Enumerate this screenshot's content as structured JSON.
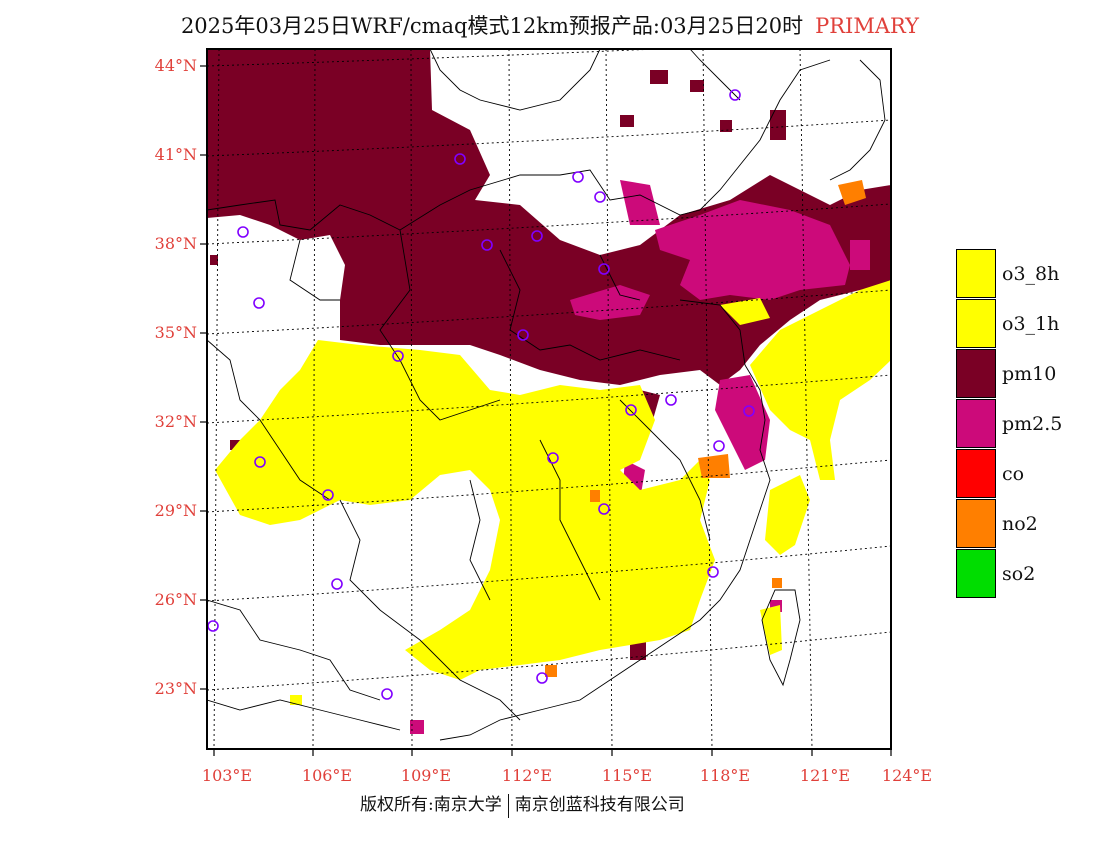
{
  "title": "2025年03月25日WRF/cmaq模式12km预报产品:03月25日20时",
  "title_highlight": "PRIMARY",
  "latitude_labels": [
    "44°N",
    "41°N",
    "38°N",
    "35°N",
    "32°N",
    "29°N",
    "26°N",
    "23°N"
  ],
  "longitude_labels": [
    "103°E",
    "106°E",
    "109°E",
    "112°E",
    "115°E",
    "118°E",
    "121°E",
    "124°E"
  ],
  "legend": [
    {
      "label": "o3_8h",
      "color": "#ffff00"
    },
    {
      "label": "o3_1h",
      "color": "#ffff00"
    },
    {
      "label": "pm10",
      "color": "#7a0025"
    },
    {
      "label": "pm2.5",
      "color": "#cc0a7a"
    },
    {
      "label": "co",
      "color": "#ff0000"
    },
    {
      "label": "no2",
      "color": "#ff7f00"
    },
    {
      "label": "so2",
      "color": "#00dd00"
    }
  ],
  "footer_left": "版权所有:南京大学",
  "footer_right": "南京创蓝科技有限公司"
}
